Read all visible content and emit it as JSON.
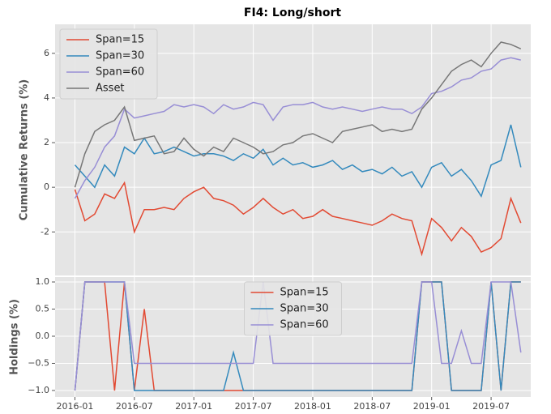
{
  "chart_data": [
    {
      "type": "line",
      "title": "FI4: Long/short",
      "y_label": "Cumulative Returns (%)",
      "x": [
        "2016-01",
        "2016-02",
        "2016-03",
        "2016-04",
        "2016-05",
        "2016-06",
        "2016-07",
        "2016-08",
        "2016-09",
        "2016-10",
        "2016-11",
        "2016-12",
        "2017-01",
        "2017-02",
        "2017-03",
        "2017-04",
        "2017-05",
        "2017-06",
        "2017-07",
        "2017-08",
        "2017-09",
        "2017-10",
        "2017-11",
        "2017-12",
        "2018-01",
        "2018-02",
        "2018-03",
        "2018-04",
        "2018-05",
        "2018-06",
        "2018-07",
        "2018-08",
        "2018-09",
        "2018-10",
        "2018-11",
        "2018-12",
        "2019-01",
        "2019-02",
        "2019-03",
        "2019-04",
        "2019-05",
        "2019-06",
        "2019-07",
        "2019-08",
        "2019-09",
        "2019-10"
      ],
      "xlim": [
        "2015-11",
        "2019-11"
      ],
      "xticks": [
        "2016-01",
        "2016-07",
        "2017-01",
        "2017-07",
        "2018-01",
        "2018-07",
        "2019-01",
        "2019-07"
      ],
      "ylim": [
        -3.95,
        7.3
      ],
      "yticks": [
        -2,
        0,
        2,
        4,
        6
      ],
      "grid": true,
      "legend": "upper left",
      "series": [
        {
          "name": "Span=15",
          "color": "#e24a33",
          "values": [
            -0.1,
            -1.5,
            -1.2,
            -0.3,
            -0.5,
            0.2,
            -2.0,
            -1.0,
            -1.0,
            -0.9,
            -1.0,
            -0.5,
            -0.2,
            0,
            -0.5,
            -0.6,
            -0.8,
            -1.2,
            -0.9,
            -0.5,
            -0.9,
            -1.2,
            -1.0,
            -1.4,
            -1.3,
            -1.0,
            -1.3,
            -1.4,
            -1.5,
            -1.6,
            -1.7,
            -1.5,
            -1.2,
            -1.4,
            -1.5,
            -3.0,
            -1.4,
            -1.8,
            -2.4,
            -1.8,
            -2.2,
            -2.9,
            -2.7,
            -2.3,
            -0.5,
            -1.6
          ]
        },
        {
          "name": "Span=30",
          "color": "#348abd",
          "values": [
            1.0,
            0.5,
            0.0,
            1.0,
            0.5,
            1.8,
            1.5,
            2.2,
            1.5,
            1.6,
            1.8,
            1.6,
            1.4,
            1.5,
            1.5,
            1.4,
            1.2,
            1.5,
            1.3,
            1.7,
            1.0,
            1.3,
            1.0,
            1.1,
            0.9,
            1.0,
            1.2,
            0.8,
            1.0,
            0.7,
            0.8,
            0.6,
            0.9,
            0.5,
            0.7,
            0.0,
            0.9,
            1.1,
            0.5,
            0.8,
            0.3,
            -0.4,
            1.0,
            1.2,
            2.8,
            0.9
          ]
        },
        {
          "name": "Span=60",
          "color": "#988ed5",
          "values": [
            -0.5,
            0.3,
            0.9,
            1.8,
            2.3,
            3.5,
            3.1,
            3.2,
            3.3,
            3.4,
            3.7,
            3.6,
            3.7,
            3.6,
            3.3,
            3.7,
            3.5,
            3.6,
            3.8,
            3.7,
            3.0,
            3.6,
            3.7,
            3.7,
            3.8,
            3.6,
            3.5,
            3.6,
            3.5,
            3.4,
            3.5,
            3.6,
            3.5,
            3.5,
            3.3,
            3.6,
            4.2,
            4.3,
            4.5,
            4.8,
            4.9,
            5.2,
            5.3,
            5.7,
            5.8,
            5.7
          ]
        },
        {
          "name": "Asset",
          "color": "#777777",
          "values": [
            0.0,
            1.5,
            2.5,
            2.8,
            3.0,
            3.6,
            2.1,
            2.2,
            2.3,
            1.5,
            1.6,
            2.2,
            1.7,
            1.4,
            1.8,
            1.6,
            2.2,
            2.0,
            1.8,
            1.5,
            1.6,
            1.9,
            2.0,
            2.3,
            2.4,
            2.2,
            2.0,
            2.5,
            2.6,
            2.7,
            2.8,
            2.5,
            2.6,
            2.5,
            2.6,
            3.5,
            4.0,
            4.6,
            5.2,
            5.5,
            5.7,
            5.4,
            6.0,
            6.5,
            6.4,
            6.2
          ]
        }
      ]
    },
    {
      "type": "line",
      "y_label": "Holdings (%)",
      "x": [
        "2016-01",
        "2016-02",
        "2016-03",
        "2016-04",
        "2016-05",
        "2016-06",
        "2016-07",
        "2016-08",
        "2016-09",
        "2016-10",
        "2016-11",
        "2016-12",
        "2017-01",
        "2017-02",
        "2017-03",
        "2017-04",
        "2017-05",
        "2017-06",
        "2017-07",
        "2017-08",
        "2017-09",
        "2017-10",
        "2017-11",
        "2017-12",
        "2018-01",
        "2018-02",
        "2018-03",
        "2018-04",
        "2018-05",
        "2018-06",
        "2018-07",
        "2018-08",
        "2018-09",
        "2018-10",
        "2018-11",
        "2018-12",
        "2019-01",
        "2019-02",
        "2019-03",
        "2019-04",
        "2019-05",
        "2019-06",
        "2019-07",
        "2019-08",
        "2019-09",
        "2019-10"
      ],
      "xlim": [
        "2015-11",
        "2019-11"
      ],
      "xticks": [
        "2016-01",
        "2016-07",
        "2017-01",
        "2017-07",
        "2018-01",
        "2018-07",
        "2019-01",
        "2019-07"
      ],
      "ylim": [
        -1.12,
        1.09
      ],
      "yticks": [
        {
          "value": -1,
          "label": "−1.0"
        },
        {
          "value": -0.5,
          "label": "−0.5"
        },
        {
          "value": 0,
          "label": "0.0"
        },
        {
          "value": 0.5,
          "label": "0.5"
        },
        {
          "value": 1,
          "label": "1.0"
        }
      ],
      "grid": true,
      "legend": "upper center",
      "series": [
        {
          "name": "Span=15",
          "color": "#e24a33",
          "values": [
            -1,
            1,
            1,
            1,
            -1,
            1,
            -1,
            0.5,
            -1,
            -1,
            -1,
            -1,
            -1,
            -1,
            -1,
            -1,
            -1,
            -1,
            -1,
            -1,
            -1,
            -1,
            -1,
            -1,
            -1,
            -1,
            -1,
            -1,
            -1,
            -1,
            -1,
            -1,
            -1,
            -1,
            -1,
            1,
            1,
            1,
            -1,
            -1,
            -1,
            -1,
            1,
            -1,
            1,
            1
          ]
        },
        {
          "name": "Span=30",
          "color": "#348abd",
          "values": [
            -1,
            1,
            1,
            1,
            1,
            1,
            -1,
            -1,
            -1,
            -1,
            -1,
            -1,
            -1,
            -1,
            -1,
            -1,
            -0.3,
            -1,
            -1,
            -1,
            -1,
            -1,
            -1,
            -1,
            -1,
            -1,
            -1,
            -1,
            -1,
            -1,
            -1,
            -1,
            -1,
            -1,
            -1,
            1,
            1,
            1,
            -1,
            -1,
            -1,
            -1,
            1,
            -1,
            1,
            1
          ]
        },
        {
          "name": "Span=60",
          "color": "#988ed5",
          "values": [
            -1,
            1,
            1,
            1,
            1,
            1,
            -0.5,
            -0.5,
            -0.5,
            -0.5,
            -0.5,
            -0.5,
            -0.5,
            -0.5,
            -0.5,
            -0.5,
            -0.5,
            -0.5,
            -0.5,
            1,
            -0.5,
            -0.5,
            -0.5,
            -0.5,
            -0.5,
            -0.5,
            -0.5,
            -0.5,
            -0.5,
            -0.5,
            -0.5,
            -0.5,
            -0.5,
            -0.5,
            -0.5,
            1,
            1,
            -0.5,
            -0.5,
            0.1,
            -0.5,
            -0.5,
            1,
            1,
            1,
            -0.3
          ]
        }
      ]
    }
  ]
}
